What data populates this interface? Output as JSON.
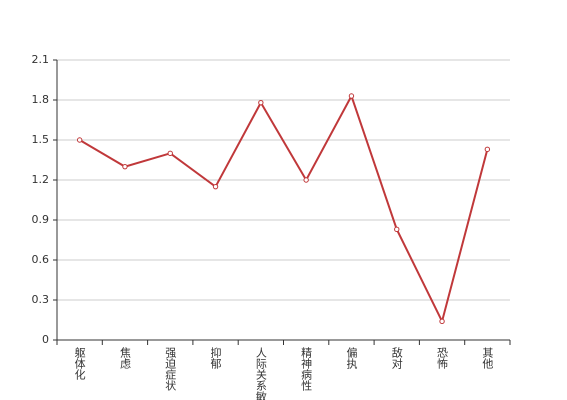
{
  "chart_data": {
    "type": "line",
    "categories": [
      "躯体化",
      "焦虑",
      "强迫症状",
      "抑郁",
      "人际关系敏感",
      "精神病性",
      "偏执",
      "敌对",
      "恐怖",
      "其他"
    ],
    "values": [
      1.5,
      1.3,
      1.4,
      1.15,
      1.78,
      1.2,
      1.83,
      0.83,
      0.14,
      1.43
    ],
    "color": "#c0383a",
    "ylim": [
      0,
      2.1
    ],
    "yticks": [
      0,
      0.3,
      0.6,
      0.9,
      1.2,
      1.5,
      1.8,
      2.1
    ],
    "grid": true
  }
}
